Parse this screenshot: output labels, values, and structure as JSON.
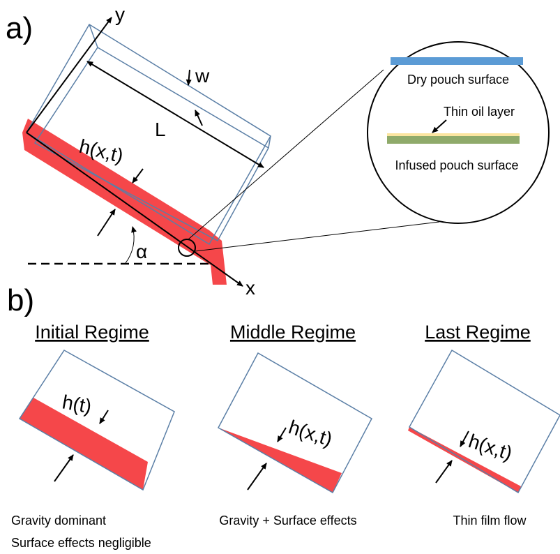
{
  "panel_a": {
    "label": "a)",
    "axis_y": "y",
    "axis_x": "x",
    "width_label": "w",
    "length_label": "L",
    "height_label": "h(x,t)",
    "angle_label": "α",
    "inset": {
      "dry": "Dry pouch surface",
      "oil": "Thin oil layer",
      "infused": "Infused pouch surface"
    }
  },
  "panel_b": {
    "label": "b)",
    "regimes": [
      {
        "title": "Initial Regime",
        "height_label": "h(t)",
        "notes": [
          "Gravity dominant",
          "Surface effects negligible"
        ]
      },
      {
        "title": "Middle Regime",
        "height_label": "h(x,t)",
        "notes": [
          "Gravity + Surface effects"
        ]
      },
      {
        "title": "Last Regime",
        "height_label": "h(x,t)",
        "notes": [
          "Thin film flow"
        ]
      }
    ]
  }
}
